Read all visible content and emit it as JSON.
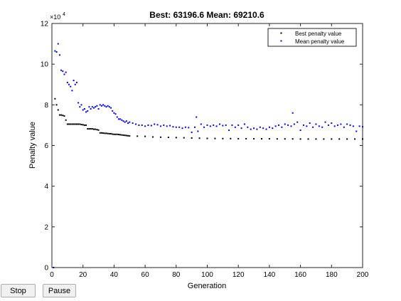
{
  "chart_data": {
    "type": "scatter",
    "title": "Best: 63196.6 Mean: 69210.6",
    "xlabel": "Generation",
    "ylabel": "Penalty value",
    "xlim": [
      0,
      200
    ],
    "ylim": [
      0,
      120000
    ],
    "x_ticks": [
      "0",
      "20",
      "40",
      "60",
      "80",
      "100",
      "120",
      "140",
      "160",
      "180",
      "200"
    ],
    "y_ticks": [
      "0",
      "2",
      "4",
      "6",
      "8",
      "10",
      "12"
    ],
    "y_exponent_label": "×10",
    "y_exponent_power": "4",
    "legend_position": "top-right",
    "grid": false,
    "series": [
      {
        "name": "Best penalty value",
        "color": "#000000",
        "x": [
          1,
          2,
          3,
          4,
          5,
          6,
          7,
          8,
          9,
          10,
          11,
          12,
          13,
          14,
          15,
          16,
          17,
          18,
          19,
          20,
          21,
          22,
          23,
          24,
          25,
          26,
          27,
          28,
          29,
          30,
          31,
          32,
          33,
          34,
          35,
          36,
          37,
          38,
          39,
          40,
          41,
          42,
          43,
          44,
          45,
          46,
          47,
          48,
          49,
          50,
          55,
          60,
          65,
          70,
          75,
          80,
          85,
          90,
          95,
          100,
          105,
          110,
          115,
          120,
          125,
          130,
          135,
          140,
          145,
          150,
          155,
          160,
          165,
          170,
          175,
          180,
          185,
          190,
          195,
          200
        ],
        "y": [
          0,
          83000,
          80000,
          77500,
          75000,
          75000,
          74800,
          74500,
          72500,
          70500,
          70500,
          70500,
          70500,
          70500,
          70500,
          70500,
          70500,
          70500,
          70300,
          70200,
          70000,
          70000,
          68200,
          68200,
          68200,
          68200,
          68000,
          68000,
          67800,
          67600,
          66200,
          66200,
          66100,
          66000,
          66000,
          65900,
          65800,
          65800,
          65600,
          65500,
          65500,
          65500,
          65400,
          65300,
          65200,
          65100,
          65000,
          64900,
          64800,
          64700,
          64600,
          64500,
          64200,
          64100,
          64000,
          63900,
          63800,
          63700,
          63600,
          63500,
          63450,
          63400,
          63400,
          63350,
          63350,
          63300,
          63300,
          63300,
          63250,
          63250,
          63250,
          63200,
          63200,
          63200,
          63200,
          63200,
          63200,
          63200,
          63200,
          63196.6
        ]
      },
      {
        "name": "Mean penalty value",
        "color": "#0000ff",
        "x": [
          1,
          2,
          3,
          4,
          5,
          6,
          7,
          8,
          9,
          10,
          11,
          12,
          13,
          14,
          15,
          16,
          17,
          18,
          19,
          20,
          21,
          22,
          23,
          24,
          25,
          26,
          27,
          28,
          29,
          30,
          31,
          32,
          33,
          34,
          35,
          36,
          37,
          38,
          39,
          40,
          41,
          42,
          43,
          44,
          45,
          46,
          47,
          48,
          49,
          50,
          52,
          54,
          56,
          58,
          60,
          62,
          64,
          66,
          68,
          70,
          72,
          74,
          76,
          78,
          80,
          82,
          84,
          86,
          88,
          90,
          92,
          93,
          94,
          96,
          98,
          100,
          102,
          104,
          106,
          108,
          110,
          112,
          114,
          116,
          118,
          120,
          122,
          124,
          126,
          128,
          130,
          132,
          134,
          136,
          138,
          140,
          142,
          144,
          146,
          148,
          150,
          152,
          154,
          155,
          156,
          158,
          160,
          162,
          164,
          166,
          168,
          170,
          172,
          174,
          176,
          178,
          180,
          182,
          184,
          186,
          188,
          190,
          192,
          194,
          196,
          198,
          200
        ],
        "y": [
          0,
          106500,
          106000,
          110000,
          104500,
          97000,
          96500,
          95000,
          96000,
          91000,
          90000,
          89000,
          87000,
          92000,
          90000,
          91000,
          81000,
          79000,
          80000,
          77500,
          78000,
          76500,
          77000,
          79000,
          78000,
          79000,
          78500,
          79000,
          79500,
          78000,
          80000,
          79500,
          80000,
          79500,
          79000,
          79500,
          79000,
          78500,
          77000,
          76000,
          75500,
          74000,
          73000,
          73000,
          72500,
          72000,
          71500,
          72000,
          71000,
          71500,
          71000,
          70500,
          70000,
          70000,
          69500,
          70000,
          69800,
          70500,
          70200,
          69500,
          70000,
          69500,
          69800,
          69200,
          69000,
          69000,
          68500,
          69000,
          68800,
          66500,
          69000,
          74000,
          67000,
          70500,
          69000,
          70000,
          69500,
          70000,
          69500,
          70500,
          69800,
          70000,
          67500,
          70000,
          69000,
          70000,
          68500,
          70500,
          69000,
          68000,
          68500,
          68000,
          69000,
          68500,
          68000,
          69000,
          68500,
          69500,
          70000,
          69000,
          70500,
          70000,
          69500,
          76000,
          70500,
          71500,
          67500,
          70000,
          69500,
          71000,
          69000,
          70500,
          69500,
          69000,
          71500,
          70000,
          71000,
          69500,
          70000,
          70500,
          69000,
          70500,
          70000,
          69500,
          67000,
          69500,
          69210.6
        ]
      }
    ]
  },
  "controls": {
    "stop_label": "Stop",
    "pause_label": "Pause"
  }
}
